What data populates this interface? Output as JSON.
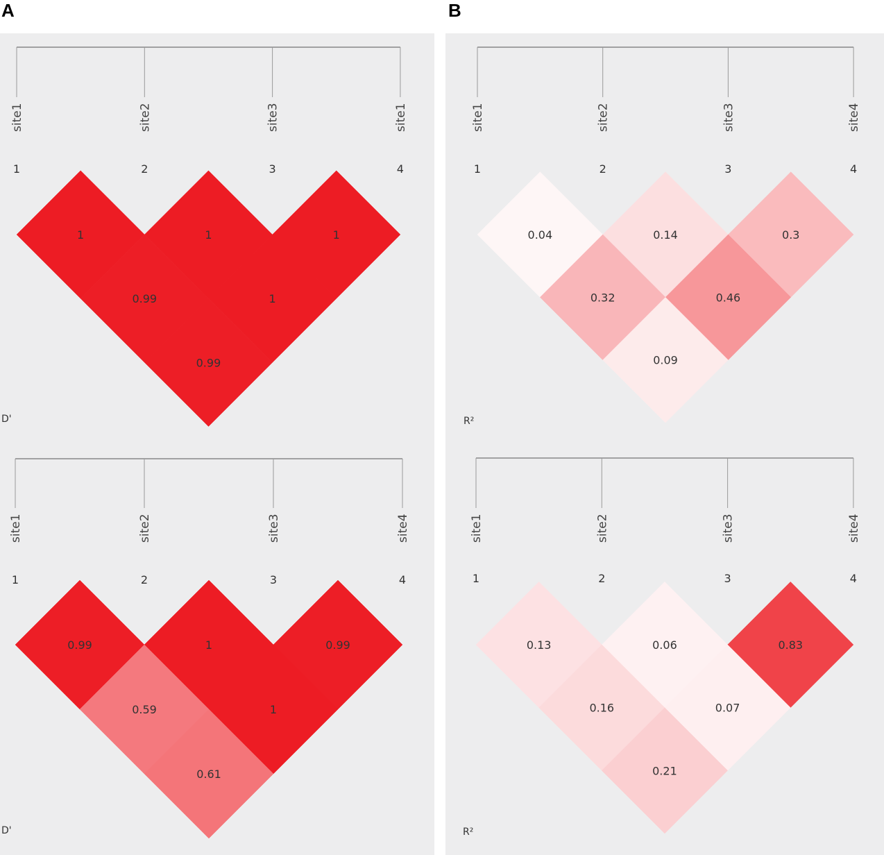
{
  "panels": [
    {
      "letter": "A"
    },
    {
      "letter": "B"
    }
  ],
  "chart_data": [
    {
      "type": "heatmap",
      "panel": "A",
      "measure_label": "D'",
      "site_labels": [
        "site1",
        "site2",
        "site3",
        "site1"
      ],
      "index_labels": [
        "1",
        "2",
        "3",
        "4"
      ],
      "cells": [
        {
          "i": 1,
          "j": 2,
          "value": 1,
          "label": "1"
        },
        {
          "i": 2,
          "j": 3,
          "value": 1,
          "label": "1"
        },
        {
          "i": 3,
          "j": 4,
          "value": 1,
          "label": "1"
        },
        {
          "i": 1,
          "j": 3,
          "value": 0.99,
          "label": "0.99"
        },
        {
          "i": 2,
          "j": 4,
          "value": 1,
          "label": "1"
        },
        {
          "i": 1,
          "j": 4,
          "value": 0.99,
          "label": "0.99"
        }
      ]
    },
    {
      "type": "heatmap",
      "panel": "A",
      "measure_label": "D'",
      "site_labels": [
        "site1",
        "site2",
        "site3",
        "site4"
      ],
      "index_labels": [
        "1",
        "2",
        "3",
        "4"
      ],
      "cells": [
        {
          "i": 1,
          "j": 2,
          "value": 0.99,
          "label": "0.99"
        },
        {
          "i": 2,
          "j": 3,
          "value": 1,
          "label": "1"
        },
        {
          "i": 3,
          "j": 4,
          "value": 0.99,
          "label": "0.99"
        },
        {
          "i": 1,
          "j": 3,
          "value": 0.59,
          "label": "0.59"
        },
        {
          "i": 2,
          "j": 4,
          "value": 1,
          "label": "1"
        },
        {
          "i": 1,
          "j": 4,
          "value": 0.61,
          "label": "0.61"
        }
      ]
    },
    {
      "type": "heatmap",
      "panel": "B",
      "measure_label": "R²",
      "site_labels": [
        "site1",
        "site2",
        "site3",
        "site4"
      ],
      "index_labels": [
        "1",
        "2",
        "3",
        "4"
      ],
      "cells": [
        {
          "i": 1,
          "j": 2,
          "value": 0.04,
          "label": "0.04"
        },
        {
          "i": 2,
          "j": 3,
          "value": 0.14,
          "label": "0.14"
        },
        {
          "i": 3,
          "j": 4,
          "value": 0.3,
          "label": "0.3"
        },
        {
          "i": 1,
          "j": 3,
          "value": 0.32,
          "label": "0.32"
        },
        {
          "i": 2,
          "j": 4,
          "value": 0.46,
          "label": "0.46"
        },
        {
          "i": 1,
          "j": 4,
          "value": 0.09,
          "label": "0.09"
        }
      ]
    },
    {
      "type": "heatmap",
      "panel": "B",
      "measure_label": "R²",
      "site_labels": [
        "site1",
        "site2",
        "site3",
        "site4"
      ],
      "index_labels": [
        "1",
        "2",
        "3",
        "4"
      ],
      "cells": [
        {
          "i": 1,
          "j": 2,
          "value": 0.13,
          "label": "0.13"
        },
        {
          "i": 2,
          "j": 3,
          "value": 0.06,
          "label": "0.06"
        },
        {
          "i": 3,
          "j": 4,
          "value": 0.83,
          "label": "0.83"
        },
        {
          "i": 1,
          "j": 3,
          "value": 0.16,
          "label": "0.16"
        },
        {
          "i": 2,
          "j": 4,
          "value": 0.07,
          "label": "0.07"
        },
        {
          "i": 1,
          "j": 4,
          "value": 0.21,
          "label": "0.21"
        }
      ]
    }
  ],
  "colors": {
    "background": "#ededee",
    "low": "#ffffff",
    "high": "#ed1c24",
    "text": "#333333",
    "ruler": "#555555"
  }
}
